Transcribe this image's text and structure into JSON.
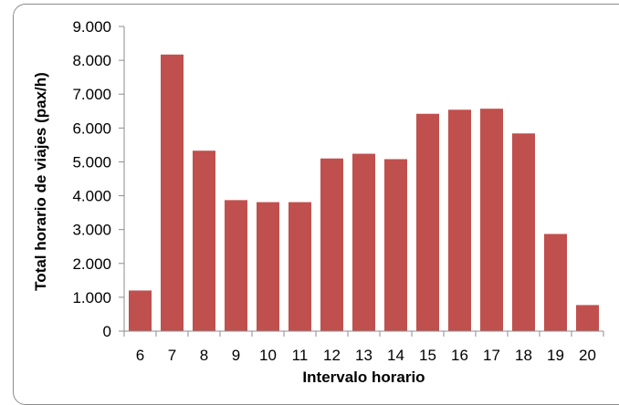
{
  "chart_data": {
    "type": "bar",
    "categories": [
      "6",
      "7",
      "8",
      "9",
      "10",
      "11",
      "12",
      "13",
      "14",
      "15",
      "16",
      "17",
      "18",
      "19",
      "20"
    ],
    "values": [
      1200,
      8170,
      5330,
      3870,
      3810,
      3810,
      5100,
      5240,
      5080,
      6420,
      6540,
      6570,
      5840,
      2870,
      770
    ],
    "title": "",
    "xlabel": "Intervalo horario",
    "ylabel": "Total horario de viajes (pax/h)",
    "ylim": [
      0,
      9000
    ],
    "yticks": [
      0,
      1000,
      2000,
      3000,
      4000,
      5000,
      6000,
      7000,
      8000,
      9000
    ],
    "ytick_labels": [
      "0",
      "1.000",
      "2.000",
      "3.000",
      "4.000",
      "5.000",
      "6.000",
      "7.000",
      "8.000",
      "9.000"
    ],
    "grid": false,
    "legend": "none",
    "bar_color": "#c0504d"
  }
}
